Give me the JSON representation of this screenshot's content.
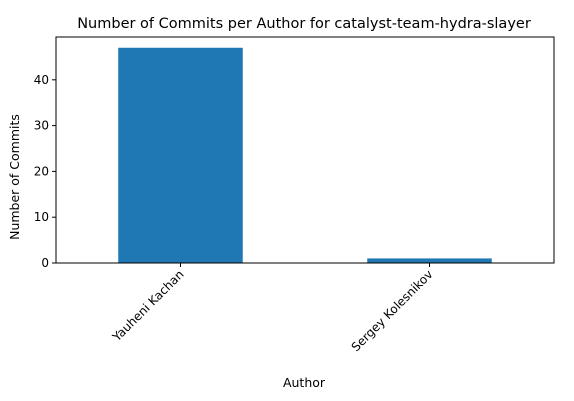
{
  "chart_data": {
    "type": "bar",
    "title": "Number of Commits per Author for catalyst-team-hydra-slayer",
    "xlabel": "Author",
    "ylabel": "Number of Commits",
    "categories": [
      "Yauheni Kachan",
      "Sergey Kolesnikov"
    ],
    "values": [
      47,
      1
    ],
    "ylim": [
      0,
      49.35
    ],
    "yticks": [
      0,
      10,
      20,
      30,
      40
    ],
    "bar_color": "#1f77b4",
    "grid": false,
    "legend": "none"
  }
}
